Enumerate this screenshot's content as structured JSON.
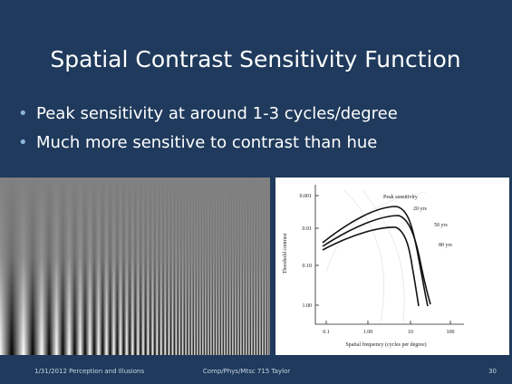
{
  "slide": {
    "title": "Spatial Contrast Sensitivity Function",
    "bullets": [
      "Peak sensitivity at around 1-3 cycles/degree",
      "Much more sensitive to contrast than hue"
    ],
    "figure": {
      "y_ticks": [
        "0.001",
        "0.01",
        "0.10",
        "1.00"
      ],
      "x_ticks": [
        "0.1",
        "1.00",
        "10",
        "100"
      ],
      "y_label": "Threshold contrast",
      "x_label": "Spatial frequency (cycles per degree)",
      "annotations": [
        "Peak sensitivity",
        "20 yrs",
        "50 yrs",
        "80 yrs"
      ]
    },
    "footer": {
      "left": "1/31/2012 Perception and Illusions",
      "center": "Comp/Phys/Mtsc  715 Taylor",
      "page": "30"
    }
  }
}
